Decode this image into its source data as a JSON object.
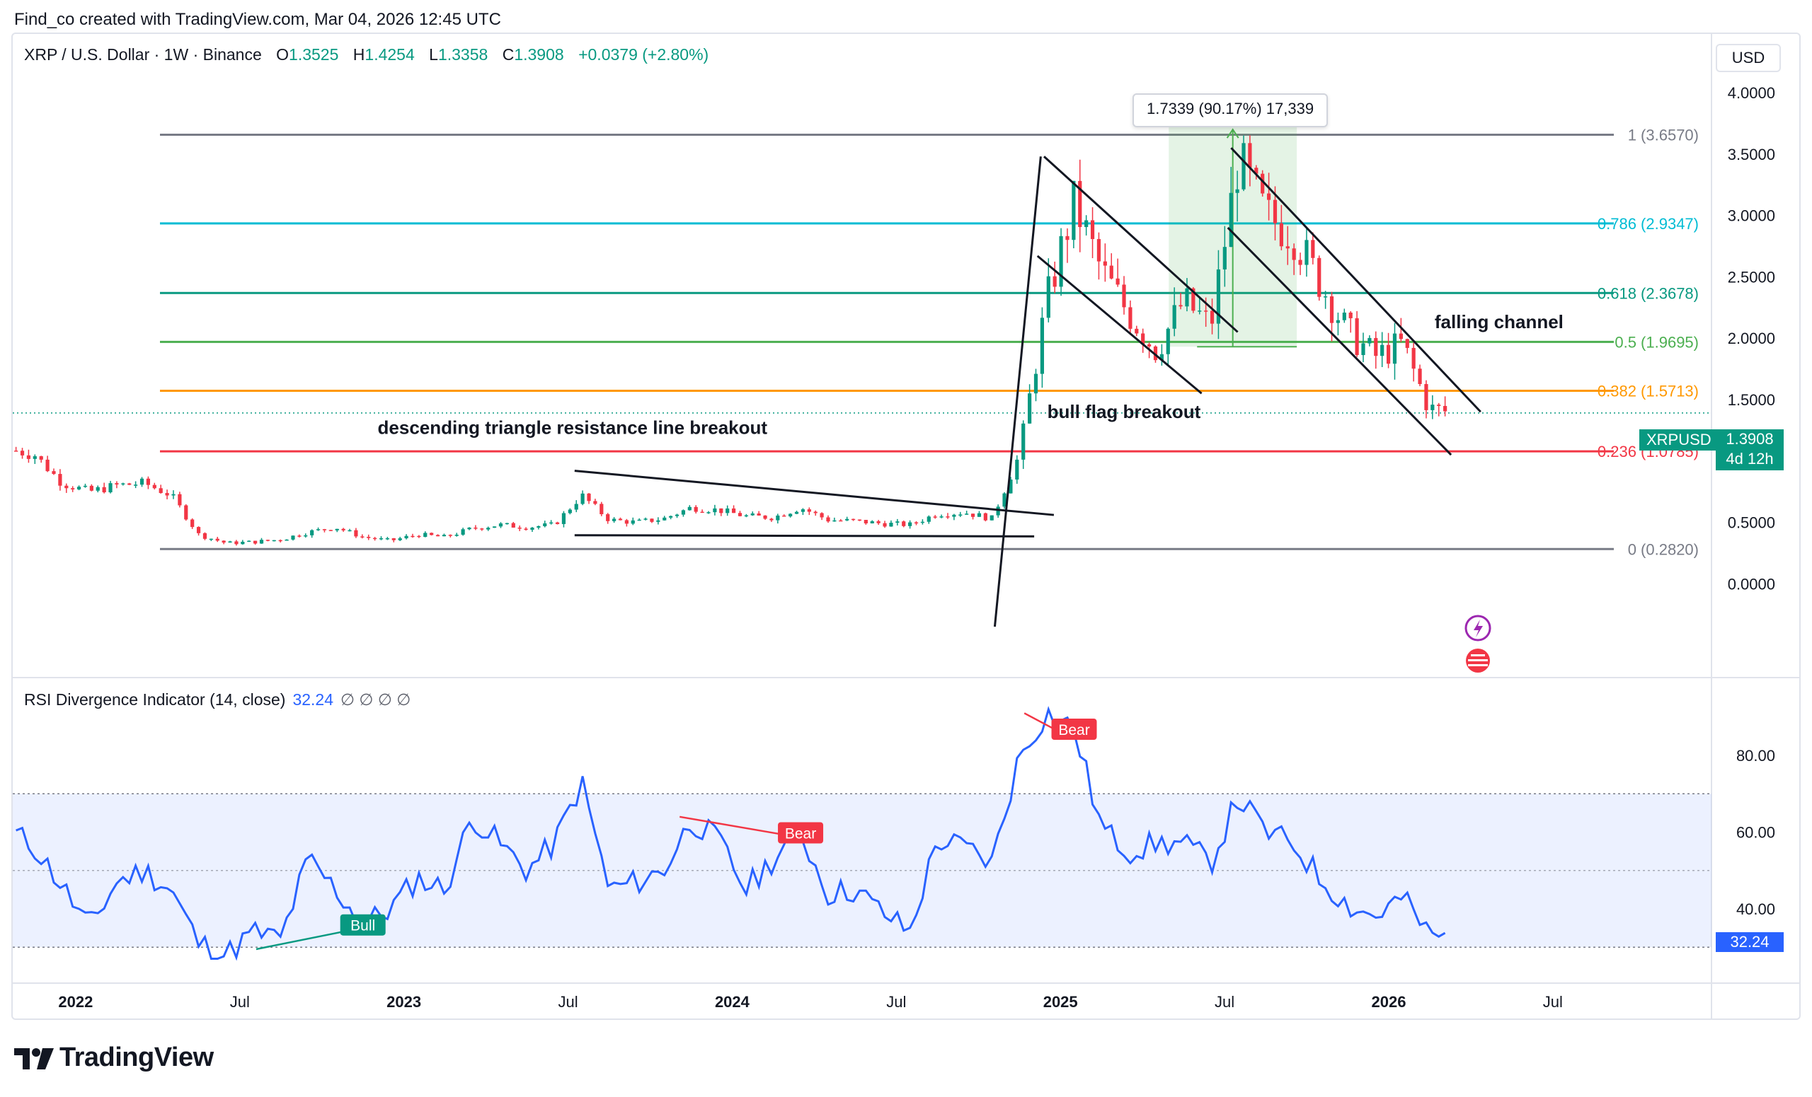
{
  "header": {
    "created": "Find_co created with TradingView.com, Mar 04, 2026 12:45 UTC",
    "symbol": "XRP / U.S. Dollar · 1W · Binance",
    "o_label": "O",
    "o": "1.3525",
    "h_label": "H",
    "h": "1.4254",
    "l_label": "L",
    "l": "1.3358",
    "c_label": "C",
    "c": "1.3908",
    "change": "+0.0379 (+2.80%)",
    "currency": "USD"
  },
  "brand": "TradingView",
  "colors": {
    "up": "#089981",
    "down": "#f23645",
    "rsi": "#2962ff",
    "fib_0": "#787b86",
    "fib_0236": "#f23645",
    "fib_0382": "#ff9800",
    "fib_05": "#4caf50",
    "fib_0618": "#089981",
    "fib_0786": "#00bcd4",
    "fib_1": "#787b86"
  },
  "chart_data": {
    "type": "candlestick",
    "title": "XRP / U.S. Dollar · 1W · Binance",
    "y_ticks": [
      "4.0000",
      "3.5000",
      "3.0000",
      "2.5000",
      "2.0000",
      "1.5000",
      "1.0000",
      "0.5000",
      "0.0000"
    ],
    "x_ticks": [
      "2022",
      "Jul",
      "2023",
      "Jul",
      "2024",
      "Jul",
      "2025",
      "Jul",
      "2026",
      "Jul"
    ],
    "ylim": [
      -0.35,
      4.0
    ],
    "last_price": "1.3908",
    "symbol_tag": "XRPUSD",
    "countdown": "4d 12h",
    "fib_levels": [
      {
        "label": "1 (3.6570)",
        "value": 3.657
      },
      {
        "label": "0.786 (2.9347)",
        "value": 2.9347
      },
      {
        "label": "0.618 (2.3678)",
        "value": 2.3678
      },
      {
        "label": "0.5 (1.9695)",
        "value": 1.9695
      },
      {
        "label": "0.382 (1.5713)",
        "value": 1.5713
      },
      {
        "label": "0.236 (1.0785)",
        "value": 1.0785
      },
      {
        "label": "0 (0.2820)",
        "value": 0.282
      }
    ],
    "annotations": {
      "triangle": "descending triangle resistance line breakout",
      "flag": "bull flag breakout",
      "channel": "falling channel",
      "measure": "1.7339 (90.17%) 17,339"
    },
    "price_points": [
      [
        "2021-10",
        1.1
      ],
      [
        "2021-11",
        1.05
      ],
      [
        "2021-12",
        0.82
      ],
      [
        "2022-01",
        0.75
      ],
      [
        "2022-02",
        0.8
      ],
      [
        "2022-03",
        0.82
      ],
      [
        "2022-04",
        0.72
      ],
      [
        "2022-05",
        0.4
      ],
      [
        "2022-06",
        0.33
      ],
      [
        "2022-07",
        0.34
      ],
      [
        "2022-08",
        0.36
      ],
      [
        "2022-09",
        0.42
      ],
      [
        "2022-10",
        0.46
      ],
      [
        "2022-11",
        0.38
      ],
      [
        "2022-12",
        0.35
      ],
      [
        "2023-01",
        0.4
      ],
      [
        "2023-02",
        0.38
      ],
      [
        "2023-03",
        0.45
      ],
      [
        "2023-04",
        0.48
      ],
      [
        "2023-05",
        0.46
      ],
      [
        "2023-06",
        0.48
      ],
      [
        "2023-07",
        0.72
      ],
      [
        "2023-08",
        0.52
      ],
      [
        "2023-09",
        0.5
      ],
      [
        "2023-10",
        0.53
      ],
      [
        "2023-11",
        0.62
      ],
      [
        "2023-12",
        0.6
      ],
      [
        "2024-01",
        0.55
      ],
      [
        "2024-02",
        0.54
      ],
      [
        "2024-03",
        0.62
      ],
      [
        "2024-04",
        0.52
      ],
      [
        "2024-05",
        0.51
      ],
      [
        "2024-06",
        0.49
      ],
      [
        "2024-07",
        0.48
      ],
      [
        "2024-08",
        0.57
      ],
      [
        "2024-09",
        0.58
      ],
      [
        "2024-10",
        0.53
      ],
      [
        "2024-11",
        1.05
      ],
      [
        "2024-12",
        2.3
      ],
      [
        "2025-01",
        3.1
      ],
      [
        "2025-02",
        2.55
      ],
      [
        "2025-03",
        2.2
      ],
      [
        "2025-04",
        1.9
      ],
      [
        "2025-05",
        2.3
      ],
      [
        "2025-06",
        2.1
      ],
      [
        "2025-07",
        3.45
      ],
      [
        "2025-08",
        3.0
      ],
      [
        "2025-09",
        2.85
      ],
      [
        "2025-10",
        2.45
      ],
      [
        "2025-11",
        2.05
      ],
      [
        "2025-12",
        1.85
      ],
      [
        "2026-01",
        1.95
      ],
      [
        "2026-02",
        1.42
      ],
      [
        "2026-03",
        1.39
      ]
    ],
    "rsi": {
      "name": "RSI Divergence Indicator (14, close)",
      "value": "32.24",
      "nan_marks": "∅ ∅ ∅ ∅",
      "y_ticks": [
        "80.00",
        "60.00",
        "40.00"
      ],
      "band": [
        30,
        70
      ],
      "points": [
        [
          "2021-10",
          61
        ],
        [
          "2021-11",
          56
        ],
        [
          "2021-12",
          46
        ],
        [
          "2022-01",
          35
        ],
        [
          "2022-02",
          47
        ],
        [
          "2022-03",
          50
        ],
        [
          "2022-04",
          45
        ],
        [
          "2022-05",
          31
        ],
        [
          "2022-06",
          28
        ],
        [
          "2022-07",
          34
        ],
        [
          "2022-08",
          32
        ],
        [
          "2022-09",
          53
        ],
        [
          "2022-10",
          45
        ],
        [
          "2022-11",
          36
        ],
        [
          "2022-12",
          40
        ],
        [
          "2023-01",
          48
        ],
        [
          "2023-02",
          45
        ],
        [
          "2023-03",
          64
        ],
        [
          "2023-04",
          57
        ],
        [
          "2023-05",
          50
        ],
        [
          "2023-06",
          57
        ],
        [
          "2023-07",
          73
        ],
        [
          "2023-08",
          45
        ],
        [
          "2023-09",
          47
        ],
        [
          "2023-10",
          50
        ],
        [
          "2023-11",
          63
        ],
        [
          "2023-12",
          58
        ],
        [
          "2024-01",
          45
        ],
        [
          "2024-02",
          53
        ],
        [
          "2024-03",
          60
        ],
        [
          "2024-04",
          44
        ],
        [
          "2024-05",
          45
        ],
        [
          "2024-06",
          39
        ],
        [
          "2024-07",
          34
        ],
        [
          "2024-08",
          58
        ],
        [
          "2024-09",
          56
        ],
        [
          "2024-10",
          52
        ],
        [
          "2024-11",
          80
        ],
        [
          "2024-12",
          91
        ],
        [
          "2025-01",
          87
        ],
        [
          "2025-02",
          61
        ],
        [
          "2025-03",
          55
        ],
        [
          "2025-04",
          57
        ],
        [
          "2025-05",
          57
        ],
        [
          "2025-06",
          52
        ],
        [
          "2025-07",
          69
        ],
        [
          "2025-08",
          60
        ],
        [
          "2025-09",
          57
        ],
        [
          "2025-10",
          48
        ],
        [
          "2025-11",
          41
        ],
        [
          "2025-12",
          38
        ],
        [
          "2026-01",
          43
        ],
        [
          "2026-02",
          33
        ],
        [
          "2026-03",
          32
        ]
      ],
      "signals": [
        {
          "label": "Bull",
          "x": "2022-11",
          "y": 36,
          "type": "bull"
        },
        {
          "label": "Bear",
          "x": "2024-03",
          "y": 60,
          "type": "bear"
        },
        {
          "label": "Bear",
          "x": "2025-01",
          "y": 87,
          "type": "bear"
        }
      ]
    }
  }
}
